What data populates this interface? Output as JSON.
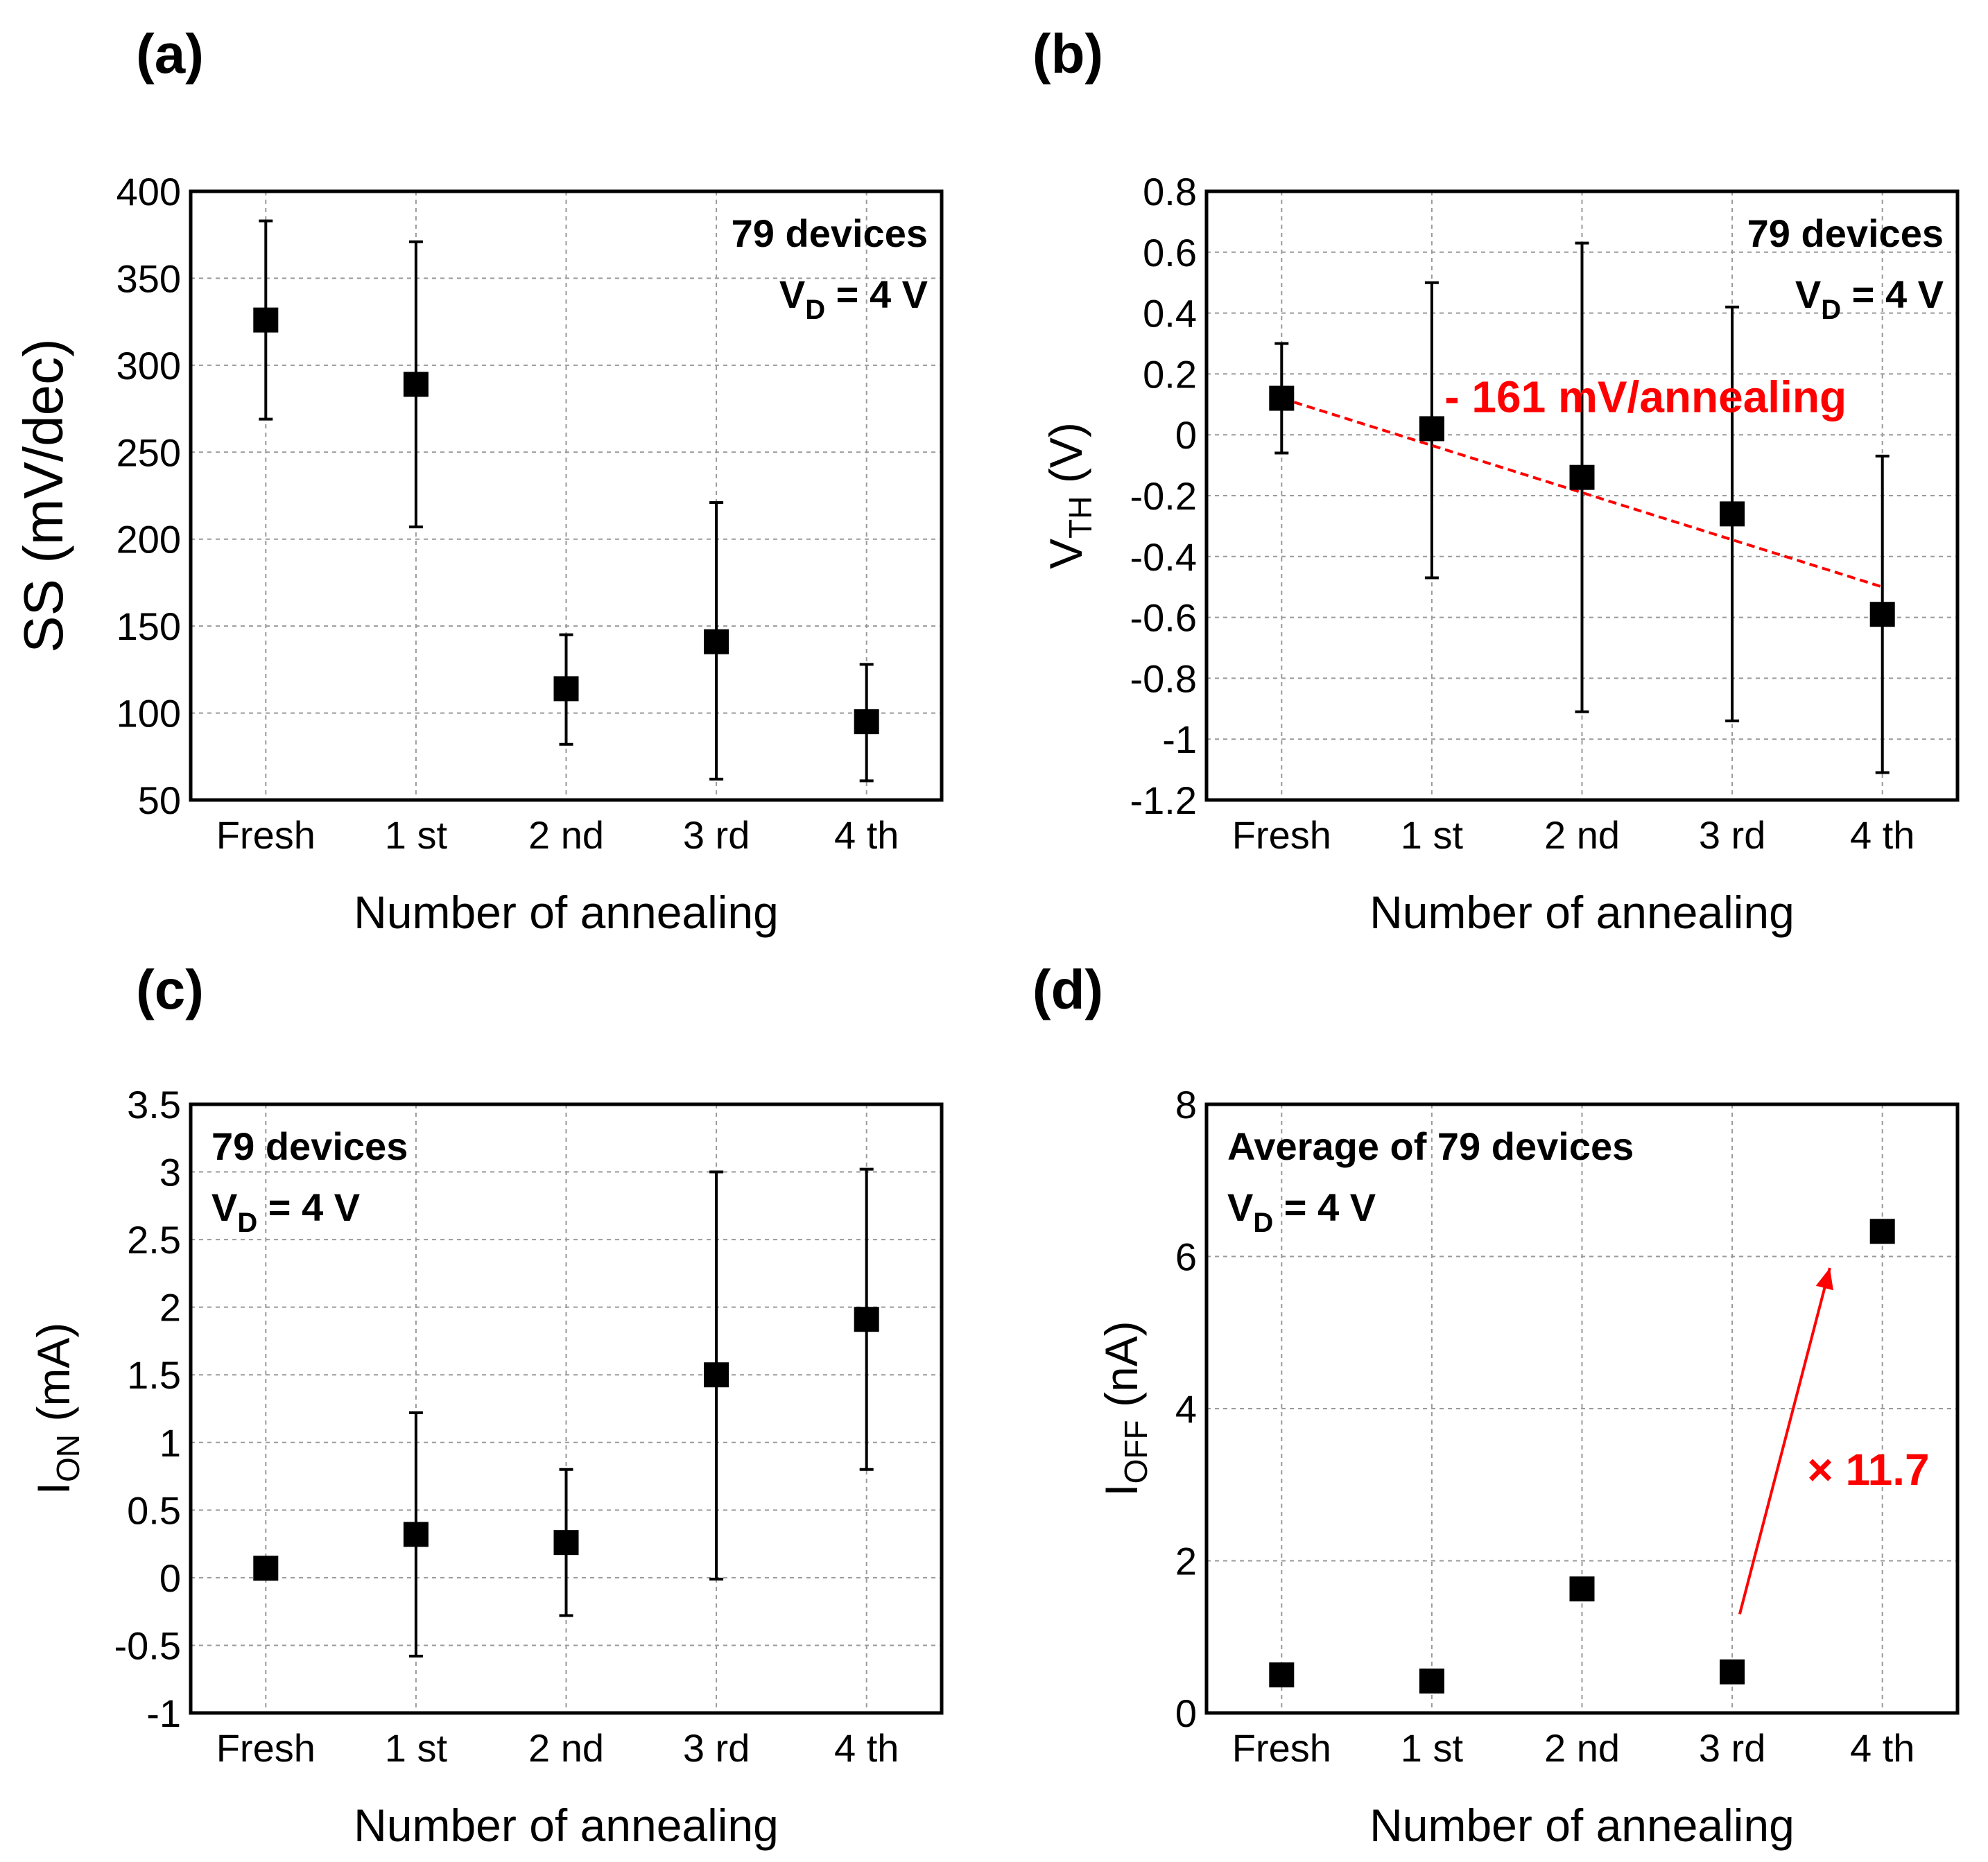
{
  "colors": {
    "marker": "#000000",
    "annotation_red": "#ff0000",
    "grid": "#9a9a9a"
  },
  "chart_data": [
    {
      "panel": "(a)",
      "type": "scatter",
      "xlabel": "Number of annealing",
      "ylabel": "SS (mV/dec)",
      "ylabel_main": "SS (mV/dec)",
      "ylabel_sub": "",
      "ylabel_tail": "",
      "categories": [
        "Fresh",
        "1 st",
        "2 nd",
        "3 rd",
        "4 th"
      ],
      "values": [
        326,
        289,
        114,
        141,
        95
      ],
      "err_low": [
        269,
        207,
        82,
        62,
        61
      ],
      "err_high": [
        383,
        371,
        145,
        221,
        128
      ],
      "ylim": [
        50,
        400
      ],
      "yticks": [
        50,
        100,
        150,
        200,
        250,
        300,
        350,
        400
      ],
      "ytick_labels": [
        "50",
        "100",
        "150",
        "200",
        "250",
        "300",
        "350",
        "400"
      ],
      "annotation": {
        "lines": [
          {
            "main": "79 devices",
            "sub": "",
            "tail": ""
          },
          {
            "main": "V",
            "sub": "D",
            "tail": " = 4 V"
          }
        ],
        "anchor": "top-right"
      },
      "grid": true
    },
    {
      "panel": "(b)",
      "type": "scatter",
      "xlabel": "Number of annealing",
      "ylabel": "VTH (V)",
      "ylabel_main": "V",
      "ylabel_sub": "TH",
      "ylabel_tail": " (V)",
      "categories": [
        "Fresh",
        "1 st",
        "2 nd",
        "3 rd",
        "4 th"
      ],
      "values": [
        0.12,
        0.02,
        -0.14,
        -0.26,
        -0.59
      ],
      "err_low": [
        -0.06,
        -0.47,
        -0.91,
        -0.94,
        -1.11
      ],
      "err_high": [
        0.3,
        0.5,
        0.63,
        0.42,
        -0.07
      ],
      "ylim": [
        -1.2,
        0.8
      ],
      "yticks": [
        -1.2,
        -1,
        -0.8,
        -0.6,
        -0.4,
        -0.2,
        0,
        0.2,
        0.4,
        0.6,
        0.8
      ],
      "ytick_labels": [
        "-1.2",
        "-1",
        "-0.8",
        "-0.6",
        "-0.4",
        "-0.2",
        "0",
        "0.2",
        "0.4",
        "0.6",
        "0.8"
      ],
      "annotation": {
        "lines": [
          {
            "main": "79 devices",
            "sub": "",
            "tail": ""
          },
          {
            "main": "V",
            "sub": "D",
            "tail": " = 4 V"
          }
        ],
        "anchor": "top-right"
      },
      "trend": {
        "label": "- 161 mV/annealing",
        "from": [
          0,
          0.12
        ],
        "to": [
          4,
          -0.5
        ]
      },
      "grid": true
    },
    {
      "panel": "(c)",
      "type": "scatter",
      "xlabel": "Number of annealing",
      "ylabel": "ION (mA)",
      "ylabel_main": "I",
      "ylabel_sub": "ON",
      "ylabel_tail": " (mA)",
      "categories": [
        "Fresh",
        "1 st",
        "2 nd",
        "3 rd",
        "4 th"
      ],
      "values": [
        0.07,
        0.32,
        0.26,
        1.5,
        1.91
      ],
      "err_low": [
        null,
        -0.58,
        -0.28,
        -0.01,
        0.8
      ],
      "err_high": [
        null,
        1.22,
        0.8,
        3.0,
        3.02
      ],
      "ylim": [
        -1,
        3.5
      ],
      "yticks": [
        -1,
        -0.5,
        0,
        0.5,
        1,
        1.5,
        2,
        2.5,
        3,
        3.5
      ],
      "ytick_labels": [
        "-1",
        "-0.5",
        "0",
        "0.5",
        "1",
        "1.5",
        "2",
        "2.5",
        "3",
        "3.5"
      ],
      "annotation": {
        "lines": [
          {
            "main": "79 devices",
            "sub": "",
            "tail": ""
          },
          {
            "main": "V",
            "sub": "D",
            "tail": " = 4 V"
          }
        ],
        "anchor": "top-left"
      },
      "grid": true
    },
    {
      "panel": "(d)",
      "type": "scatter",
      "xlabel": "Number of annealing",
      "ylabel": "IOFF (nA)",
      "ylabel_main": "I",
      "ylabel_sub": "OFF",
      "ylabel_tail": " (nA)",
      "categories": [
        "Fresh",
        "1 st",
        "2 nd",
        "3 rd",
        "4 th"
      ],
      "values": [
        0.5,
        0.42,
        1.63,
        0.54,
        6.33
      ],
      "err_low": [
        null,
        null,
        null,
        null,
        null
      ],
      "err_high": [
        null,
        null,
        null,
        null,
        null
      ],
      "ylim": [
        0,
        8
      ],
      "yticks": [
        0,
        2,
        4,
        6,
        8
      ],
      "ytick_labels": [
        "0",
        "2",
        "4",
        "6",
        "8"
      ],
      "annotation": {
        "lines": [
          {
            "main": "Average of 79 devices",
            "sub": "",
            "tail": ""
          },
          {
            "main": "V",
            "sub": "D",
            "tail": " = 4 V"
          }
        ],
        "anchor": "top-left"
      },
      "arrow": {
        "label": "× 11.7",
        "from": [
          3.05,
          1.3
        ],
        "to": [
          3.65,
          5.85
        ]
      },
      "grid": true
    }
  ]
}
